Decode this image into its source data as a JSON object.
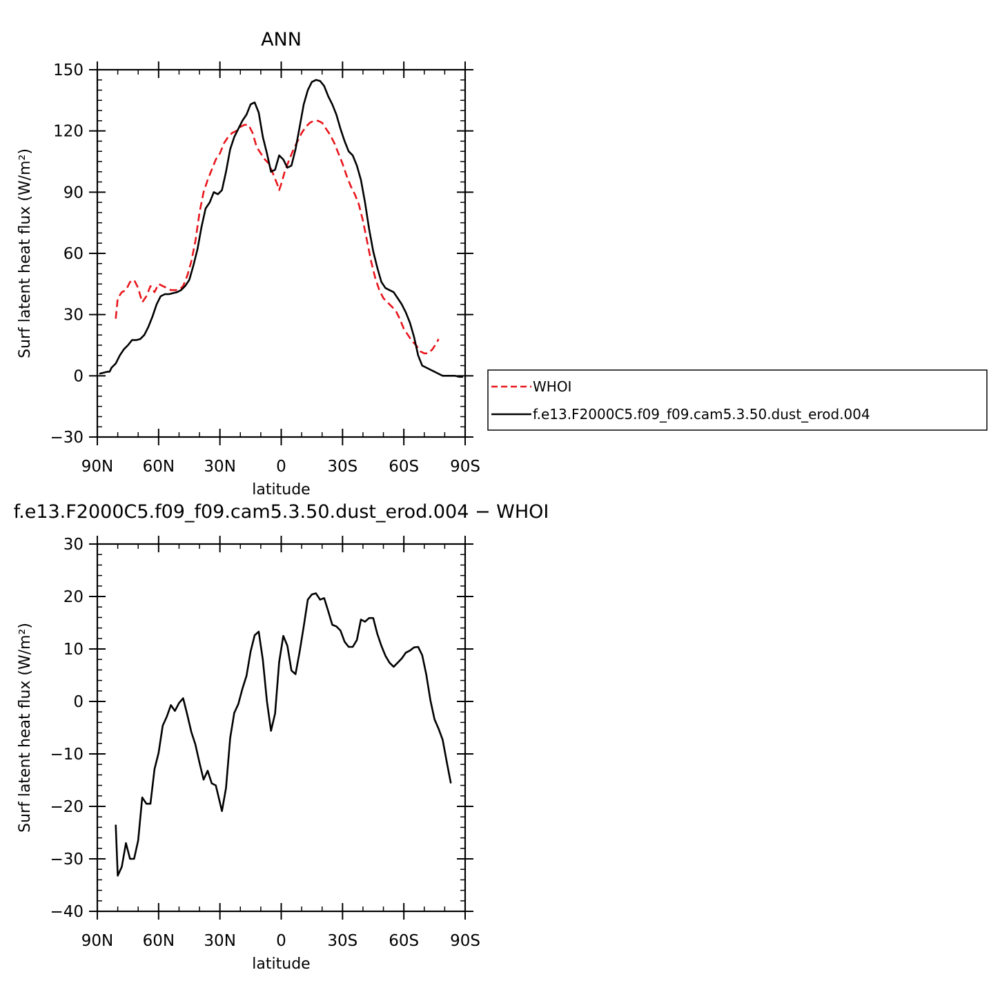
{
  "chart_data": [
    {
      "type": "line",
      "title": "ANN",
      "xlabel": "latitude",
      "ylabel": "Surf latent heat flux (W/m²)",
      "xlim": [
        90,
        -90
      ],
      "ylim": [
        -30,
        150
      ],
      "yticks": [
        -30,
        0,
        30,
        60,
        90,
        120,
        150
      ],
      "ytick_labels": [
        "−30",
        "0",
        "30",
        "60",
        "90",
        "120",
        "150"
      ],
      "xticks": [
        90,
        60,
        30,
        0,
        -30,
        -60,
        -90
      ],
      "xtick_labels": [
        "90N",
        "60N",
        "30N",
        "0",
        "30S",
        "60S",
        "90S"
      ],
      "legend": {
        "placement": "right"
      },
      "series": [
        {
          "name": "WHOI",
          "color": "#e8141a",
          "style": "dashed",
          "points": [
            [
              81,
              28
            ],
            [
              80,
              38
            ],
            [
              78,
              41
            ],
            [
              76,
              42
            ],
            [
              74,
              46
            ],
            [
              72,
              47
            ],
            [
              70,
              43
            ],
            [
              68,
              36
            ],
            [
              66,
              39
            ],
            [
              64,
              44
            ],
            [
              62,
              41
            ],
            [
              60,
              45
            ],
            [
              58,
              44
            ],
            [
              56,
              43
            ],
            [
              54,
              42
            ],
            [
              52,
              42
            ],
            [
              50,
              42
            ],
            [
              48,
              44
            ],
            [
              46,
              49
            ],
            [
              44,
              56
            ],
            [
              42,
              66
            ],
            [
              40,
              80
            ],
            [
              38,
              90
            ],
            [
              36,
              96
            ],
            [
              34,
              101
            ],
            [
              32,
              106
            ],
            [
              30,
              109
            ],
            [
              28,
              114
            ],
            [
              26,
              117
            ],
            [
              24,
              119
            ],
            [
              22,
              120
            ],
            [
              20,
              122
            ],
            [
              18,
              123
            ],
            [
              16,
              123
            ],
            [
              14,
              119
            ],
            [
              12,
              112
            ],
            [
              10,
              109
            ],
            [
              8,
              106
            ],
            [
              6,
              104
            ],
            [
              4,
              99
            ],
            [
              2,
              94
            ],
            [
              1,
              91
            ],
            [
              0,
              94
            ],
            [
              -2,
              101
            ],
            [
              -4,
              106
            ],
            [
              -6,
              111
            ],
            [
              -8,
              115
            ],
            [
              -10,
              119
            ],
            [
              -12,
              122
            ],
            [
              -14,
              124
            ],
            [
              -16,
              125
            ],
            [
              -18,
              125
            ],
            [
              -20,
              124
            ],
            [
              -22,
              121
            ],
            [
              -24,
              118
            ],
            [
              -26,
              114
            ],
            [
              -28,
              109
            ],
            [
              -30,
              104
            ],
            [
              -32,
              98
            ],
            [
              -34,
              93
            ],
            [
              -36,
              89
            ],
            [
              -38,
              84
            ],
            [
              -40,
              76
            ],
            [
              -42,
              66
            ],
            [
              -44,
              56
            ],
            [
              -46,
              48
            ],
            [
              -48,
              42
            ],
            [
              -50,
              38
            ],
            [
              -52,
              36
            ],
            [
              -54,
              34
            ],
            [
              -56,
              32
            ],
            [
              -58,
              28
            ],
            [
              -60,
              23
            ],
            [
              -62,
              20
            ],
            [
              -64,
              17
            ],
            [
              -66,
              15
            ],
            [
              -68,
              12
            ],
            [
              -70,
              11
            ],
            [
              -72,
              11
            ],
            [
              -74,
              13
            ],
            [
              -76,
              16
            ],
            [
              -77,
              18
            ]
          ]
        },
        {
          "name": "f.e13.F2000C5.f09_f09.cam5.3.50.dust_erod.004",
          "color": "#000000",
          "style": "solid",
          "points": [
            [
              89,
              1
            ],
            [
              87,
              1.5
            ],
            [
              85,
              2
            ],
            [
              84,
              2
            ],
            [
              83,
              4
            ],
            [
              81,
              6
            ],
            [
              79,
              10
            ],
            [
              77,
              13
            ],
            [
              75,
              15
            ],
            [
              73,
              17.5
            ],
            [
              71,
              17.5
            ],
            [
              69,
              18
            ],
            [
              67,
              20
            ],
            [
              65,
              24
            ],
            [
              63,
              29
            ],
            [
              61,
              35
            ],
            [
              59,
              39
            ],
            [
              57,
              40
            ],
            [
              55,
              40
            ],
            [
              53,
              40.5
            ],
            [
              51,
              41
            ],
            [
              49,
              42
            ],
            [
              47,
              44
            ],
            [
              45,
              47
            ],
            [
              43,
              54
            ],
            [
              41,
              62
            ],
            [
              39,
              73
            ],
            [
              37,
              82
            ],
            [
              35,
              85
            ],
            [
              33,
              90
            ],
            [
              31,
              89
            ],
            [
              29,
              91
            ],
            [
              27,
              100
            ],
            [
              25,
              111
            ],
            [
              23,
              117
            ],
            [
              21,
              121
            ],
            [
              19,
              125
            ],
            [
              17,
              128
            ],
            [
              15,
              133
            ],
            [
              13,
              134
            ],
            [
              11,
              129
            ],
            [
              9,
              117
            ],
            [
              7,
              109
            ],
            [
              5,
              100
            ],
            [
              3,
              101
            ],
            [
              1,
              108
            ],
            [
              -1,
              106
            ],
            [
              -3,
              102
            ],
            [
              -5,
              103
            ],
            [
              -7,
              111
            ],
            [
              -9,
              122
            ],
            [
              -11,
              133
            ],
            [
              -13,
              140
            ],
            [
              -15,
              144
            ],
            [
              -17,
              145
            ],
            [
              -19,
              144.5
            ],
            [
              -21,
              142
            ],
            [
              -23,
              137
            ],
            [
              -25,
              133
            ],
            [
              -27,
              128
            ],
            [
              -29,
              121
            ],
            [
              -31,
              115
            ],
            [
              -33,
              110
            ],
            [
              -35,
              108
            ],
            [
              -37,
              103
            ],
            [
              -39,
              96
            ],
            [
              -41,
              85
            ],
            [
              -43,
              72
            ],
            [
              -45,
              61
            ],
            [
              -47,
              53
            ],
            [
              -49,
              46
            ],
            [
              -51,
              43
            ],
            [
              -53,
              42
            ],
            [
              -55,
              41
            ],
            [
              -57,
              38
            ],
            [
              -59,
              35
            ],
            [
              -61,
              31
            ],
            [
              -63,
              26
            ],
            [
              -65,
              19
            ],
            [
              -67,
              10
            ],
            [
              -69,
              5
            ],
            [
              -71,
              4
            ],
            [
              -73,
              3
            ],
            [
              -75,
              2
            ],
            [
              -77,
              1
            ],
            [
              -79,
              0
            ],
            [
              -81,
              0
            ],
            [
              -83,
              0
            ],
            [
              -85,
              0
            ],
            [
              -87,
              -0.5
            ],
            [
              -89,
              -0.5
            ]
          ]
        }
      ]
    },
    {
      "type": "line",
      "title": "f.e13.F2000C5.f09_f09.cam5.3.50.dust_erod.004 − WHOI",
      "xlabel": "latitude",
      "ylabel": "Surf latent heat flux (W/m²)",
      "xlim": [
        90,
        -90
      ],
      "ylim": [
        -40,
        30
      ],
      "yticks": [
        -40,
        -30,
        -20,
        -10,
        0,
        10,
        20,
        30
      ],
      "ytick_labels": [
        "−40",
        "−30",
        "−20",
        "−10",
        "0",
        "10",
        "20",
        "30"
      ],
      "xticks": [
        90,
        60,
        30,
        0,
        -30,
        -60,
        -90
      ],
      "xtick_labels": [
        "90N",
        "60N",
        "30N",
        "0",
        "30S",
        "60S",
        "90S"
      ],
      "series": [
        {
          "color": "#000000",
          "style": "solid",
          "points": [
            [
              81,
              -23.5
            ],
            [
              80,
              -33.2
            ],
            [
              78,
              -31.5
            ],
            [
              76,
              -27
            ],
            [
              74,
              -30
            ],
            [
              72,
              -30
            ],
            [
              70,
              -26.5
            ],
            [
              68,
              -18.3
            ],
            [
              66,
              -19.5
            ],
            [
              64,
              -19.5
            ],
            [
              62,
              -12.9
            ],
            [
              60,
              -9.8
            ],
            [
              58,
              -4.6
            ],
            [
              56,
              -2.9
            ],
            [
              54,
              -0.7
            ],
            [
              52,
              -1.8
            ],
            [
              50,
              -0.3
            ],
            [
              48,
              0.6
            ],
            [
              46,
              -2.5
            ],
            [
              44,
              -5.8
            ],
            [
              42,
              -8.2
            ],
            [
              40,
              -11.7
            ],
            [
              38,
              -14.9
            ],
            [
              36,
              -13.2
            ],
            [
              34,
              -15.6
            ],
            [
              32,
              -16
            ],
            [
              30,
              -19.3
            ],
            [
              29,
              -20.9
            ],
            [
              27,
              -16.5
            ],
            [
              25,
              -7
            ],
            [
              23,
              -2.2
            ],
            [
              21,
              -0.5
            ],
            [
              19,
              2.4
            ],
            [
              17,
              4.9
            ],
            [
              15,
              9.5
            ],
            [
              13,
              12.6
            ],
            [
              11,
              13.3
            ],
            [
              9,
              7.9
            ],
            [
              7,
              0
            ],
            [
              5,
              -5.6
            ],
            [
              3,
              -2.3
            ],
            [
              1,
              7.5
            ],
            [
              -1,
              12.5
            ],
            [
              -3,
              10.6
            ],
            [
              -5,
              5.9
            ],
            [
              -7,
              5.2
            ],
            [
              -9,
              9.5
            ],
            [
              -11,
              14.3
            ],
            [
              -13,
              19.4
            ],
            [
              -15,
              20.4
            ],
            [
              -17,
              20.6
            ],
            [
              -19,
              19.4
            ],
            [
              -21,
              19.7
            ],
            [
              -23,
              17.2
            ],
            [
              -25,
              14.6
            ],
            [
              -27,
              14.3
            ],
            [
              -29,
              13.5
            ],
            [
              -31,
              11.4
            ],
            [
              -33,
              10.4
            ],
            [
              -35,
              10.4
            ],
            [
              -37,
              11.7
            ],
            [
              -39,
              15.6
            ],
            [
              -41,
              15.2
            ],
            [
              -43,
              15.9
            ],
            [
              -45,
              15.9
            ],
            [
              -47,
              12.9
            ],
            [
              -49,
              10.6
            ],
            [
              -51,
              8.7
            ],
            [
              -53,
              7.4
            ],
            [
              -55,
              6.6
            ],
            [
              -57,
              7.4
            ],
            [
              -59,
              8.2
            ],
            [
              -61,
              9.3
            ],
            [
              -63,
              9.7
            ],
            [
              -65,
              10.3
            ],
            [
              -67,
              10.4
            ],
            [
              -69,
              8.8
            ],
            [
              -71,
              5.1
            ],
            [
              -73,
              0.2
            ],
            [
              -75,
              -3.4
            ],
            [
              -77,
              -5.2
            ],
            [
              -79,
              -7.3
            ],
            [
              -81,
              -11.5
            ],
            [
              -83,
              -15.6
            ]
          ]
        }
      ]
    }
  ]
}
